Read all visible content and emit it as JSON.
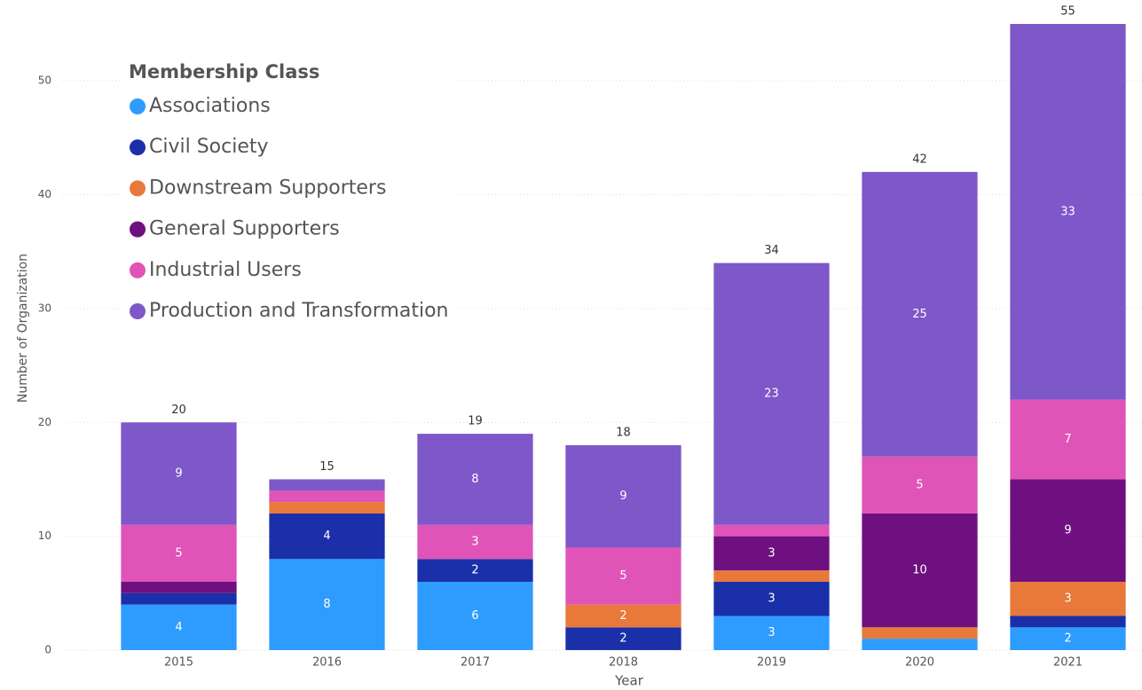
{
  "chart_data": {
    "type": "stacked_bar",
    "legend_title": "Membership Class",
    "x_label": "Year",
    "y_label": "Number of Organization",
    "categories": [
      "2015",
      "2016",
      "2017",
      "2018",
      "2019",
      "2020",
      "2021"
    ],
    "series": [
      {
        "name": "Associations",
        "color": "#2e9bff",
        "values": [
          4,
          8,
          6,
          0,
          3,
          1,
          2
        ]
      },
      {
        "name": "Civil Society",
        "color": "#1b2fa8",
        "values": [
          1,
          4,
          2,
          2,
          3,
          0,
          1
        ]
      },
      {
        "name": "Downstream Supporters",
        "color": "#e8793b",
        "values": [
          0,
          1,
          0,
          2,
          1,
          1,
          3
        ]
      },
      {
        "name": "General Supporters",
        "color": "#6e1080",
        "values": [
          1,
          0,
          0,
          0,
          3,
          10,
          9
        ]
      },
      {
        "name": "Industrial Users",
        "color": "#e054b8",
        "values": [
          5,
          1,
          3,
          5,
          1,
          5,
          7
        ]
      },
      {
        "name": "Production and Transformation",
        "color": "#7e57c9",
        "values": [
          9,
          1,
          8,
          9,
          23,
          25,
          33
        ]
      }
    ],
    "totals": [
      20,
      15,
      19,
      18,
      34,
      42,
      55
    ],
    "ylim": [
      0,
      55
    ],
    "yticks": [
      0,
      10,
      20,
      30,
      40,
      50
    ],
    "grid": true,
    "legend": "top-left"
  }
}
